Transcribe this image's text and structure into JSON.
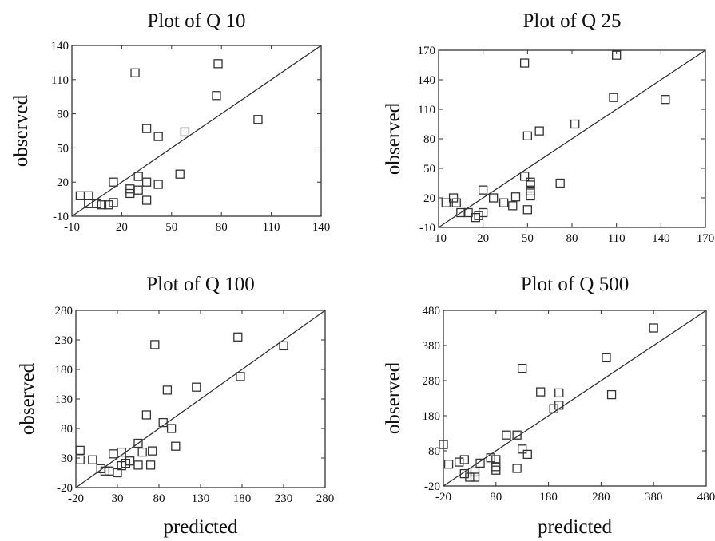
{
  "chart_data": [
    {
      "type": "scatter",
      "title": "Plot of Q 10",
      "xlabel": "",
      "ylabel": "observed",
      "xlim": [
        -10,
        140
      ],
      "ylim": [
        -10,
        140
      ],
      "xticks": [
        -10,
        20,
        50,
        80,
        110,
        140
      ],
      "yticks": [
        -10,
        20,
        50,
        80,
        110,
        140
      ],
      "line": [
        [
          -10,
          -10
        ],
        [
          140,
          140
        ]
      ],
      "points": [
        [
          -5,
          8
        ],
        [
          0,
          8
        ],
        [
          0,
          1
        ],
        [
          5,
          1
        ],
        [
          8,
          0
        ],
        [
          12,
          0
        ],
        [
          15,
          2
        ],
        [
          15,
          20
        ],
        [
          28,
          116
        ],
        [
          30,
          25
        ],
        [
          30,
          13
        ],
        [
          25,
          14
        ],
        [
          25,
          10
        ],
        [
          35,
          4
        ],
        [
          35,
          20
        ],
        [
          42,
          18
        ],
        [
          35,
          67
        ],
        [
          42,
          60
        ],
        [
          55,
          27
        ],
        [
          58,
          64
        ],
        [
          77,
          96
        ],
        [
          78,
          124
        ],
        [
          102,
          75
        ]
      ]
    },
    {
      "type": "scatter",
      "title": "Plot of Q 25",
      "xlabel": "",
      "ylabel": "observed",
      "xlim": [
        -10,
        170
      ],
      "ylim": [
        -10,
        170
      ],
      "xticks": [
        -10,
        20,
        50,
        80,
        110,
        140,
        170
      ],
      "yticks": [
        -10,
        20,
        50,
        80,
        110,
        140,
        170
      ],
      "line": [
        [
          -10,
          -10
        ],
        [
          170,
          170
        ]
      ],
      "points": [
        [
          -5,
          15
        ],
        [
          0,
          20
        ],
        [
          2,
          15
        ],
        [
          5,
          5
        ],
        [
          10,
          5
        ],
        [
          15,
          0
        ],
        [
          17,
          2
        ],
        [
          20,
          5
        ],
        [
          20,
          28
        ],
        [
          27,
          20
        ],
        [
          34,
          15
        ],
        [
          40,
          12
        ],
        [
          42,
          21
        ],
        [
          48,
          42
        ],
        [
          48,
          157
        ],
        [
          50,
          83
        ],
        [
          50,
          8
        ],
        [
          52,
          22
        ],
        [
          52,
          27
        ],
        [
          52,
          33
        ],
        [
          52,
          36
        ],
        [
          58,
          88
        ],
        [
          72,
          35
        ],
        [
          82,
          95
        ],
        [
          108,
          122
        ],
        [
          110,
          165
        ],
        [
          143,
          120
        ]
      ]
    },
    {
      "type": "scatter",
      "title": "Plot of Q 100",
      "xlabel": "predicted",
      "ylabel": "observed",
      "xlim": [
        -20,
        280
      ],
      "ylim": [
        -20,
        280
      ],
      "xticks": [
        -20,
        30,
        80,
        130,
        180,
        230,
        280
      ],
      "yticks": [
        -20,
        30,
        80,
        130,
        180,
        230,
        280
      ],
      "line": [
        [
          -20,
          -20
        ],
        [
          280,
          280
        ]
      ],
      "points": [
        [
          -15,
          43
        ],
        [
          -15,
          27
        ],
        [
          0,
          27
        ],
        [
          10,
          12
        ],
        [
          15,
          8
        ],
        [
          20,
          8
        ],
        [
          25,
          37
        ],
        [
          30,
          5
        ],
        [
          35,
          40
        ],
        [
          35,
          17
        ],
        [
          40,
          21
        ],
        [
          45,
          25
        ],
        [
          55,
          55
        ],
        [
          55,
          18
        ],
        [
          60,
          40
        ],
        [
          65,
          103
        ],
        [
          70,
          18
        ],
        [
          72,
          42
        ],
        [
          75,
          222
        ],
        [
          85,
          90
        ],
        [
          90,
          145
        ],
        [
          95,
          80
        ],
        [
          100,
          50
        ],
        [
          125,
          150
        ],
        [
          175,
          235
        ],
        [
          178,
          168
        ],
        [
          230,
          220
        ]
      ]
    },
    {
      "type": "scatter",
      "title": "Plot of Q 500",
      "xlabel": "predicted",
      "ylabel": "observed",
      "xlim": [
        -20,
        480
      ],
      "ylim": [
        -20,
        480
      ],
      "xticks": [
        -20,
        80,
        180,
        280,
        380,
        480
      ],
      "yticks": [
        -20,
        80,
        180,
        280,
        380,
        480
      ],
      "line": [
        [
          -20,
          -20
        ],
        [
          480,
          480
        ]
      ],
      "points": [
        [
          -20,
          98
        ],
        [
          -10,
          42
        ],
        [
          10,
          48
        ],
        [
          20,
          55
        ],
        [
          20,
          15
        ],
        [
          30,
          5
        ],
        [
          40,
          5
        ],
        [
          40,
          20
        ],
        [
          50,
          45
        ],
        [
          70,
          60
        ],
        [
          80,
          35
        ],
        [
          80,
          25
        ],
        [
          80,
          55
        ],
        [
          100,
          125
        ],
        [
          120,
          125
        ],
        [
          120,
          30
        ],
        [
          130,
          315
        ],
        [
          130,
          85
        ],
        [
          140,
          70
        ],
        [
          165,
          248
        ],
        [
          190,
          200
        ],
        [
          200,
          210
        ],
        [
          200,
          245
        ],
        [
          290,
          345
        ],
        [
          300,
          240
        ],
        [
          380,
          430
        ]
      ]
    }
  ]
}
